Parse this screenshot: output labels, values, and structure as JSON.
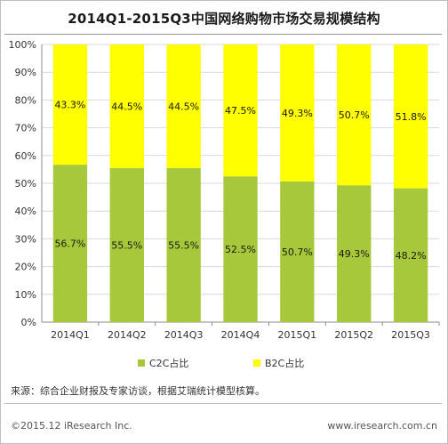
{
  "title": "2014Q1-2015Q3中国网络购物市场交易规模结构",
  "source": "来源：综合企业财报及专家访谈，根据艾瑞统计模型核算。",
  "copyright": "©2015.12 iResearch Inc.",
  "website": "www.iresearch.com.cn",
  "colors": {
    "c2c": "#a7c83a",
    "b2c": "#ffff00",
    "grid": "#d9d9d9",
    "axis": "#8c8c8c"
  },
  "chart_data": {
    "type": "bar",
    "stacked": true,
    "categories": [
      "2014Q1",
      "2014Q2",
      "2014Q3",
      "2014Q4",
      "2015Q1",
      "2015Q2",
      "2015Q3"
    ],
    "series": [
      {
        "name": "C2C占比",
        "values": [
          56.7,
          55.5,
          55.5,
          52.5,
          50.7,
          49.3,
          48.2
        ],
        "labels": [
          "56.7%",
          "55.5%",
          "55.5%",
          "52.5%",
          "50.7%",
          "49.3%",
          "48.2%"
        ],
        "color": "#a7c83a"
      },
      {
        "name": "B2C占比",
        "values": [
          43.3,
          44.5,
          44.5,
          47.5,
          49.3,
          50.7,
          51.8
        ],
        "labels": [
          "43.3%",
          "44.5%",
          "44.5%",
          "47.5%",
          "49.3%",
          "50.7%",
          "51.8%"
        ],
        "color": "#ffff00"
      }
    ],
    "ylim": [
      0,
      100
    ],
    "yticks": [
      "0%",
      "10%",
      "20%",
      "30%",
      "40%",
      "50%",
      "60%",
      "70%",
      "80%",
      "90%",
      "100%"
    ],
    "legend_position": "bottom",
    "grid": true
  }
}
